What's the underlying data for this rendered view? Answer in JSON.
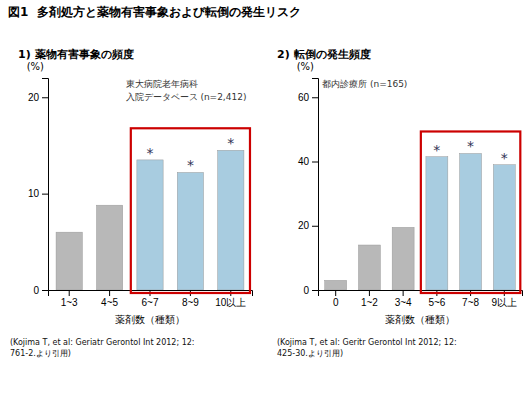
{
  "title": "図1  多剤処方と薬物有害事象および転倒の発生リスク",
  "chart_data": [
    {
      "type": "bar",
      "subtitle": "1) 薬物有害事象の頻度",
      "categories": [
        "1~3",
        "4~5",
        "6~7",
        "8~9",
        "10以上"
      ],
      "values": [
        6.0,
        8.8,
        13.5,
        12.2,
        14.5
      ],
      "colors": [
        "#b8b8b8",
        "#b8b8b8",
        "#a8cce0",
        "#a8cce0",
        "#a8cce0"
      ],
      "xlabel": "薬剤数（種類）",
      "ylabel": "(%)",
      "ylim": [
        0,
        22
      ],
      "yticks": [
        0,
        10,
        20
      ],
      "annotations": [
        {
          "text": "東大病院老年病科"
        },
        {
          "text": "入院データベース (n=2,412)"
        },
        {
          "text": "*",
          "x": "6~7"
        },
        {
          "text": "*",
          "x": "8~9"
        },
        {
          "text": "*",
          "x": "10以上"
        }
      ],
      "highlight": {
        "x": [
          "6~7",
          "8~9",
          "10以上"
        ],
        "color": "#cc0000"
      },
      "source": "(Kojima T, et al: Geriatr Gerontol Int 2012; 12:\n761-2.より引用)"
    },
    {
      "type": "bar",
      "subtitle": "2) 転倒の発生頻度",
      "categories": [
        "0",
        "1~2",
        "3~4",
        "5~6",
        "7~8",
        "9以上"
      ],
      "values": [
        3.0,
        14.0,
        19.5,
        41.5,
        42.5,
        39.0
      ],
      "colors": [
        "#b8b8b8",
        "#b8b8b8",
        "#b8b8b8",
        "#a8cce0",
        "#a8cce0",
        "#a8cce0"
      ],
      "xlabel": "薬剤数（種類）",
      "ylabel": "(%)",
      "ylim": [
        0,
        66
      ],
      "yticks": [
        0,
        20,
        40,
        60
      ],
      "annotations": [
        {
          "text": "都内診療所 (n=165)"
        },
        {
          "text": "*",
          "x": "5~6"
        },
        {
          "text": "*",
          "x": "7~8"
        },
        {
          "text": "*",
          "x": "9以上"
        }
      ],
      "highlight": {
        "x": [
          "5~6",
          "7~8",
          "9以上"
        ],
        "color": "#cc0000"
      },
      "source": "(Kojima T, et al: Geritr Gerontol Int 2012; 12:\n425-30.より引用)"
    }
  ]
}
